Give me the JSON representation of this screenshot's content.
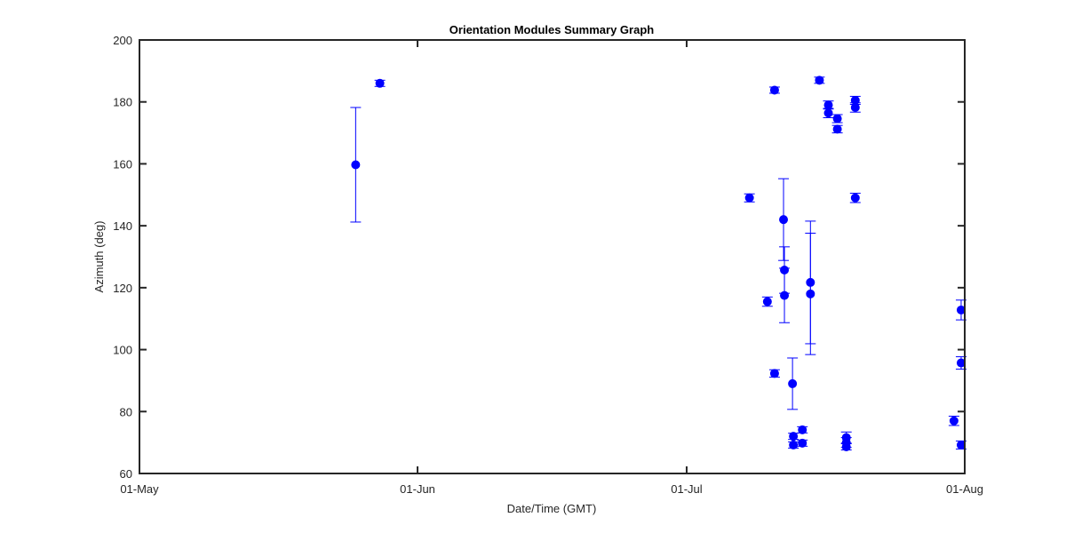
{
  "chart_data": {
    "type": "scatter",
    "title": "Orientation Modules Summary Graph",
    "xlabel": "Date/Time (GMT)",
    "ylabel": "Azimuth (deg)",
    "x_units": "days since 01-May",
    "xlim": [
      0,
      92
    ],
    "ylim": [
      60,
      200
    ],
    "x_ticks": [
      {
        "value": 0,
        "label": "01-May"
      },
      {
        "value": 31,
        "label": "01-Jun"
      },
      {
        "value": 61,
        "label": "01-Jul"
      },
      {
        "value": 92,
        "label": "01-Aug"
      }
    ],
    "y_ticks": [
      {
        "value": 60,
        "label": "60"
      },
      {
        "value": 80,
        "label": "80"
      },
      {
        "value": 100,
        "label": "100"
      },
      {
        "value": 120,
        "label": "120"
      },
      {
        "value": 140,
        "label": "140"
      },
      {
        "value": 160,
        "label": "160"
      },
      {
        "value": 180,
        "label": "180"
      },
      {
        "value": 200,
        "label": "200"
      }
    ],
    "grid": false,
    "marker_color": "#0000ff",
    "series": [
      {
        "name": "Azimuth",
        "points": [
          {
            "x": 24.1,
            "y": 159.7,
            "err": 18.5
          },
          {
            "x": 26.8,
            "y": 186.0,
            "err": 1.0
          },
          {
            "x": 68.0,
            "y": 149.0,
            "err": 1.3
          },
          {
            "x": 70.0,
            "y": 115.5,
            "err": 1.5
          },
          {
            "x": 70.8,
            "y": 92.3,
            "err": 1.2
          },
          {
            "x": 70.8,
            "y": 183.8,
            "err": 1.0
          },
          {
            "x": 71.8,
            "y": 142.0,
            "err": 13.2
          },
          {
            "x": 71.9,
            "y": 125.7,
            "err": 7.5
          },
          {
            "x": 71.9,
            "y": 117.5,
            "err": 8.8
          },
          {
            "x": 72.8,
            "y": 89.0,
            "err": 8.3
          },
          {
            "x": 72.9,
            "y": 72.0,
            "err": 1.0
          },
          {
            "x": 72.9,
            "y": 69.2,
            "err": 1.0
          },
          {
            "x": 73.9,
            "y": 74.1,
            "err": 1.0
          },
          {
            "x": 73.9,
            "y": 69.8,
            "err": 1.0
          },
          {
            "x": 74.8,
            "y": 121.7,
            "err": 19.8
          },
          {
            "x": 74.8,
            "y": 118.0,
            "err": 19.6
          },
          {
            "x": 75.8,
            "y": 187.0,
            "err": 1.0
          },
          {
            "x": 76.8,
            "y": 179.0,
            "err": 1.3
          },
          {
            "x": 76.8,
            "y": 176.4,
            "err": 1.5
          },
          {
            "x": 77.8,
            "y": 174.6,
            "err": 1.3
          },
          {
            "x": 77.8,
            "y": 171.2,
            "err": 1.2
          },
          {
            "x": 78.8,
            "y": 71.6,
            "err": 1.8
          },
          {
            "x": 78.8,
            "y": 70.0,
            "err": 1.6
          },
          {
            "x": 78.8,
            "y": 68.6,
            "err": 1.0
          },
          {
            "x": 79.8,
            "y": 180.5,
            "err": 1.3
          },
          {
            "x": 79.8,
            "y": 178.2,
            "err": 1.5
          },
          {
            "x": 79.8,
            "y": 149.0,
            "err": 1.5
          },
          {
            "x": 90.8,
            "y": 77.0,
            "err": 1.5
          },
          {
            "x": 91.6,
            "y": 112.8,
            "err": 3.2
          },
          {
            "x": 91.6,
            "y": 95.7,
            "err": 2.0
          },
          {
            "x": 91.6,
            "y": 69.2,
            "err": 1.3
          }
        ]
      }
    ]
  }
}
